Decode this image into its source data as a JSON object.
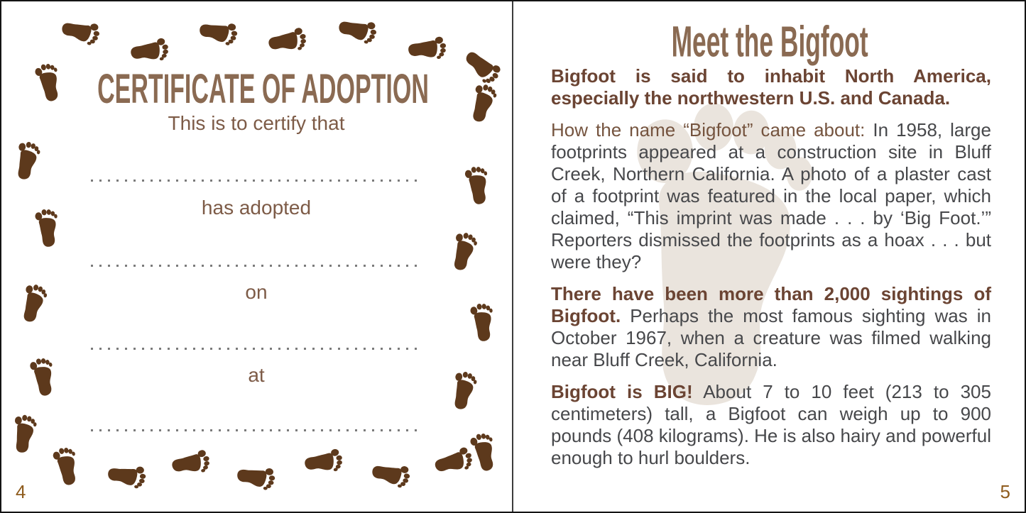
{
  "left_page": {
    "title": "CERTIFICATE OF ADOPTION",
    "subtitle": "This is to certify that",
    "field_labels": [
      "has adopted",
      "on",
      "at"
    ],
    "page_number": "4"
  },
  "right_page": {
    "title": "Meet the Bigfoot",
    "paragraphs": [
      {
        "lead": "Bigfoot is said to inhabit North America, especially the northwestern U.S. and Canada.",
        "rest": ""
      },
      {
        "lead": "How the name “Bigfoot” came about:",
        "rest": "In 1958, large footprints appeared at a construction site in Bluff Creek, Northern California. A photo of a plaster cast of a footprint was featured in the local paper, which claimed, “This imprint was made . . . by ‘Big Foot.’” Reporters dismissed the footprints as a hoax . . . but were they?"
      },
      {
        "lead": "There have been more than 2,000 sightings of Bigfoot.",
        "rest": "Perhaps the most famous sighting was in October 1967, when a creature was filmed walking near Bluff Creek, California."
      },
      {
        "lead": "Bigfoot is BIG!",
        "rest": "About 7 to 10 feet (213 to 305 centimeters) tall, a Bigfoot can weigh up to 900 pounds (408 kilograms). He is also hairy and powerful enough to hurl boulders."
      }
    ],
    "page_number": "5"
  },
  "icons": {
    "border_stamp": "footprint-icon",
    "background": "footprint-watermark"
  },
  "colors": {
    "title_brown": "#8a6a52",
    "label_brown": "#7d5b47",
    "lead_bold_brown": "#6b4433",
    "lead_light_brown": "#75543f",
    "body_gray": "#47484b",
    "footprint_brown": "#5d391c",
    "watermark_beige": "#eae4dd",
    "page_number_gold": "#8f5c1e",
    "dot_gray": "#7b7b7b"
  }
}
